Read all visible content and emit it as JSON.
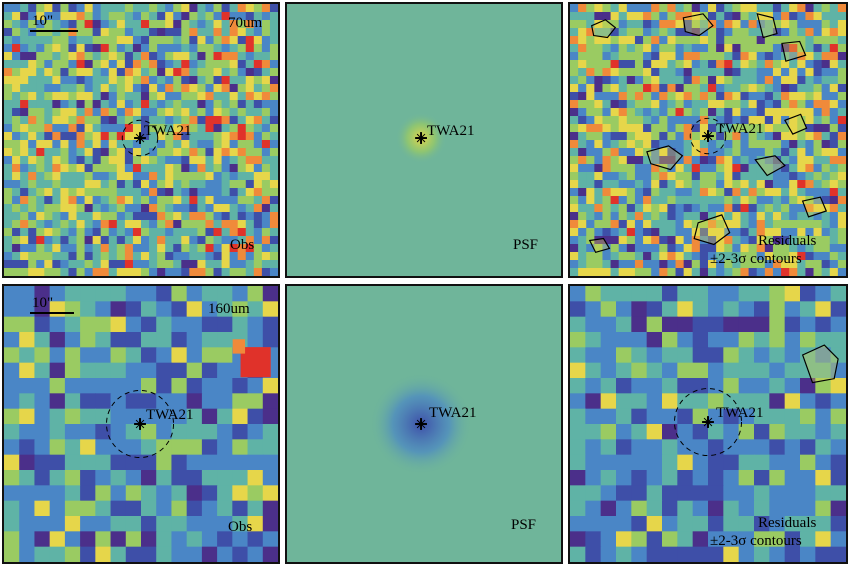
{
  "figure": {
    "rows": [
      {
        "band_label": "70um",
        "scale_label": "10\"",
        "panels": [
          {
            "name": "obs-70",
            "caption": "Obs",
            "source": "TWA21",
            "palette": "noisy",
            "show_scale": true
          },
          {
            "name": "psf-70",
            "caption": "PSF",
            "source": "TWA21",
            "palette": "psf-bright"
          },
          {
            "name": "res-70",
            "caption": "Residuals",
            "caption2": "±2-3σ contours",
            "source": "TWA21",
            "palette": "noisy-contours"
          }
        ],
        "axis_ticks": [
          "30",
          "20",
          "10"
        ]
      },
      {
        "band_label": "160um",
        "scale_label": "10\"",
        "panels": [
          {
            "name": "obs-160",
            "caption": "Obs",
            "source": "TWA21",
            "palette": "blocky",
            "show_scale": true
          },
          {
            "name": "psf-160",
            "caption": "PSF",
            "source": "TWA21",
            "palette": "psf-dark"
          },
          {
            "name": "res-160",
            "caption": "Residuals",
            "caption2": "±2-3σ contours",
            "source": "TWA21",
            "palette": "blocky-res"
          }
        ],
        "axis_ticks": [
          "20",
          "15",
          "10"
        ]
      }
    ],
    "colors": {
      "background_teal": "#6fb59a",
      "red": "#e0322a",
      "orange": "#f08a3a",
      "yellow": "#e6d64a",
      "green": "#9acb62",
      "teal": "#5fb3a6",
      "blue": "#4a86c6",
      "dark_blue": "#3e4fa8",
      "purple": "#4b2f8a"
    }
  }
}
